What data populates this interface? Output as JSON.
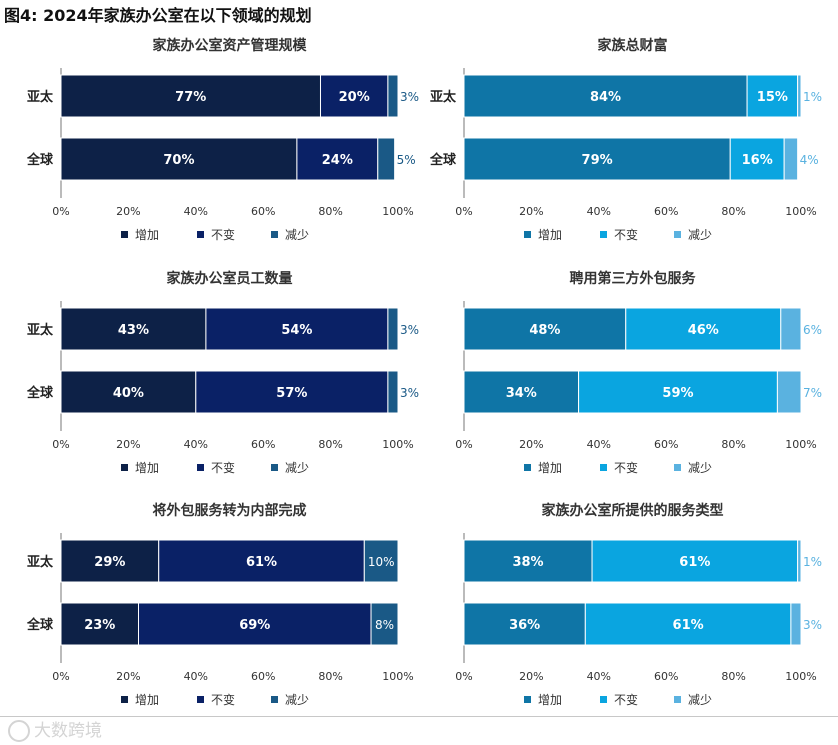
{
  "page": {
    "title": "图4:  2024年家族办公室在以下领域的规划",
    "watermark": "大数跨境"
  },
  "colors": {
    "left": [
      "#0d2147",
      "#0a2166",
      "#1a5986"
    ],
    "right": [
      "#0f75a6",
      "#0aa5e0",
      "#5ab2e0"
    ]
  },
  "legend_labels": [
    "增加",
    "不变",
    "减少"
  ],
  "x_ticks": [
    "0%",
    "20%",
    "40%",
    "60%",
    "80%",
    "100%"
  ],
  "chart_data": [
    {
      "type": "bar",
      "stacked": true,
      "orientation": "horizontal",
      "palette": "left",
      "title": "家族办公室资产管理规模",
      "categories": [
        "亚太",
        "全球"
      ],
      "xlim": [
        0,
        100
      ],
      "series": [
        {
          "name": "增加",
          "values": [
            77,
            70
          ]
        },
        {
          "name": "不变",
          "values": [
            20,
            24
          ]
        },
        {
          "name": "减少",
          "values": [
            3,
            5
          ]
        }
      ],
      "labels": [
        [
          "77%",
          "20%",
          "3%"
        ],
        [
          "70%",
          "24%",
          "5%"
        ]
      ]
    },
    {
      "type": "bar",
      "stacked": true,
      "orientation": "horizontal",
      "palette": "right",
      "title": "家族总财富",
      "categories": [
        "亚太",
        "全球"
      ],
      "xlim": [
        0,
        100
      ],
      "series": [
        {
          "name": "增加",
          "values": [
            84,
            79
          ]
        },
        {
          "name": "不变",
          "values": [
            15,
            16
          ]
        },
        {
          "name": "减少",
          "values": [
            1,
            4
          ]
        }
      ],
      "labels": [
        [
          "84%",
          "15%",
          "1%"
        ],
        [
          "79%",
          "16%",
          "4%"
        ]
      ]
    },
    {
      "type": "bar",
      "stacked": true,
      "orientation": "horizontal",
      "palette": "left",
      "title": "家族办公室员工数量",
      "categories": [
        "亚太",
        "全球"
      ],
      "xlim": [
        0,
        100
      ],
      "series": [
        {
          "name": "增加",
          "values": [
            43,
            40
          ]
        },
        {
          "name": "不变",
          "values": [
            54,
            57
          ]
        },
        {
          "name": "减少",
          "values": [
            3,
            3
          ]
        }
      ],
      "labels": [
        [
          "43%",
          "54%",
          "3%"
        ],
        [
          "40%",
          "57%",
          "3%"
        ]
      ]
    },
    {
      "type": "bar",
      "stacked": true,
      "orientation": "horizontal",
      "palette": "right",
      "title": "聘用第三方外包服务",
      "categories": [
        "",
        ""
      ],
      "xlim": [
        0,
        100
      ],
      "series": [
        {
          "name": "增加",
          "values": [
            48,
            34
          ]
        },
        {
          "name": "不变",
          "values": [
            46,
            59
          ]
        },
        {
          "name": "减少",
          "values": [
            6,
            7
          ]
        }
      ],
      "labels": [
        [
          "48%",
          "46%",
          "6%"
        ],
        [
          "34%",
          "59%",
          "7%"
        ]
      ]
    },
    {
      "type": "bar",
      "stacked": true,
      "orientation": "horizontal",
      "palette": "left",
      "title": "将外包服务转为内部完成",
      "categories": [
        "亚太",
        "全球"
      ],
      "xlim": [
        0,
        100
      ],
      "series": [
        {
          "name": "增加",
          "values": [
            29,
            23
          ]
        },
        {
          "name": "不变",
          "values": [
            61,
            69
          ]
        },
        {
          "name": "减少",
          "values": [
            10,
            8
          ]
        }
      ],
      "labels": [
        [
          "29%",
          "61%",
          "10%"
        ],
        [
          "23%",
          "69%",
          "8%"
        ]
      ]
    },
    {
      "type": "bar",
      "stacked": true,
      "orientation": "horizontal",
      "palette": "right",
      "title": "家族办公室所提供的服务类型",
      "categories": [
        "",
        ""
      ],
      "xlim": [
        0,
        100
      ],
      "series": [
        {
          "name": "增加",
          "values": [
            38,
            36
          ]
        },
        {
          "name": "不变",
          "values": [
            61,
            61
          ]
        },
        {
          "name": "减少",
          "values": [
            1,
            3
          ]
        }
      ],
      "labels": [
        [
          "38%",
          "61%",
          "1%"
        ],
        [
          "36%",
          "61%",
          "3%"
        ]
      ]
    }
  ]
}
